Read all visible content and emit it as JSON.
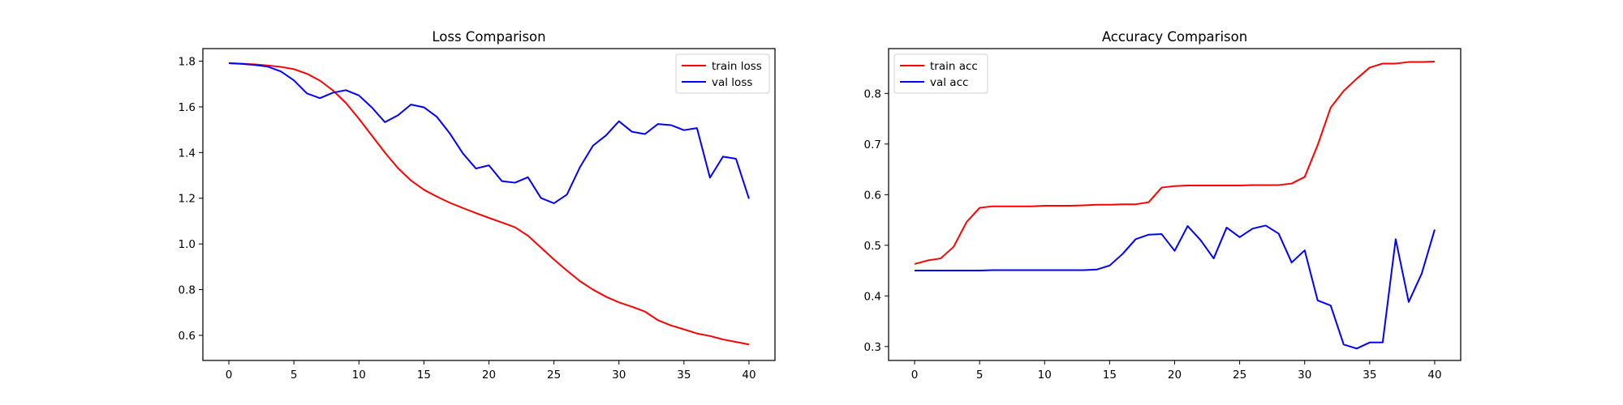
{
  "chart_data": [
    {
      "type": "line",
      "title": "Loss Comparison",
      "xlabel": "",
      "ylabel": "",
      "xlim": [
        -2,
        42
      ],
      "ylim": [
        0.49,
        1.855
      ],
      "xticks": [
        0,
        5,
        10,
        15,
        20,
        25,
        30,
        35,
        40
      ],
      "xtick_labels": [
        "0",
        "5",
        "10",
        "15",
        "20",
        "25",
        "30",
        "35",
        "40"
      ],
      "yticks": [
        0.6,
        0.8,
        1.0,
        1.2,
        1.4,
        1.6,
        1.8
      ],
      "ytick_labels": [
        "0.6",
        "0.8",
        "1.0",
        "1.2",
        "1.4",
        "1.6",
        "1.8"
      ],
      "grid": false,
      "legend_position": "top-right",
      "x": [
        0,
        1,
        2,
        3,
        4,
        5,
        6,
        7,
        8,
        9,
        10,
        11,
        12,
        13,
        14,
        15,
        16,
        17,
        18,
        19,
        20,
        21,
        22,
        23,
        24,
        25,
        26,
        27,
        28,
        29,
        30,
        31,
        32,
        33,
        34,
        35,
        36,
        37,
        38,
        39,
        40
      ],
      "series": [
        {
          "name": "train loss",
          "color": "#ff0000",
          "values": [
            1.791,
            1.789,
            1.786,
            1.781,
            1.775,
            1.765,
            1.745,
            1.715,
            1.672,
            1.617,
            1.548,
            1.474,
            1.4,
            1.332,
            1.278,
            1.237,
            1.207,
            1.18,
            1.157,
            1.135,
            1.114,
            1.094,
            1.073,
            1.036,
            0.984,
            0.932,
            0.883,
            0.837,
            0.8,
            0.769,
            0.744,
            0.725,
            0.704,
            0.666,
            0.643,
            0.626,
            0.608,
            0.597,
            0.582,
            0.571,
            0.56
          ]
        },
        {
          "name": "val loss",
          "color": "#0000ff",
          "values": [
            1.791,
            1.788,
            1.783,
            1.776,
            1.755,
            1.716,
            1.659,
            1.638,
            1.662,
            1.673,
            1.65,
            1.597,
            1.533,
            1.563,
            1.61,
            1.598,
            1.556,
            1.483,
            1.396,
            1.33,
            1.344,
            1.275,
            1.268,
            1.292,
            1.201,
            1.178,
            1.216,
            1.336,
            1.43,
            1.475,
            1.537,
            1.491,
            1.481,
            1.525,
            1.52,
            1.498,
            1.507,
            1.29,
            1.382,
            1.373,
            1.198
          ]
        }
      ]
    },
    {
      "type": "line",
      "title": "Accuracy Comparison",
      "xlabel": "",
      "ylabel": "",
      "xlim": [
        -2,
        42
      ],
      "ylim": [
        0.2725,
        0.8885
      ],
      "xticks": [
        0,
        5,
        10,
        15,
        20,
        25,
        30,
        35,
        40
      ],
      "xtick_labels": [
        "0",
        "5",
        "10",
        "15",
        "20",
        "25",
        "30",
        "35",
        "40"
      ],
      "yticks": [
        0.3,
        0.4,
        0.5,
        0.6,
        0.7,
        0.8
      ],
      "ytick_labels": [
        "0.3",
        "0.4",
        "0.5",
        "0.6",
        "0.7",
        "0.8"
      ],
      "grid": false,
      "legend_position": "top-left",
      "x": [
        0,
        1,
        2,
        3,
        4,
        5,
        6,
        7,
        8,
        9,
        10,
        11,
        12,
        13,
        14,
        15,
        16,
        17,
        18,
        19,
        20,
        21,
        22,
        23,
        24,
        25,
        26,
        27,
        28,
        29,
        30,
        31,
        32,
        33,
        34,
        35,
        36,
        37,
        38,
        39,
        40
      ],
      "series": [
        {
          "name": "train acc",
          "color": "#ff0000",
          "values": [
            0.463,
            0.47,
            0.474,
            0.497,
            0.546,
            0.574,
            0.577,
            0.577,
            0.577,
            0.577,
            0.578,
            0.578,
            0.578,
            0.579,
            0.58,
            0.58,
            0.581,
            0.581,
            0.585,
            0.614,
            0.617,
            0.618,
            0.618,
            0.618,
            0.618,
            0.618,
            0.619,
            0.619,
            0.619,
            0.622,
            0.635,
            0.698,
            0.772,
            0.805,
            0.829,
            0.851,
            0.859,
            0.859,
            0.862,
            0.862,
            0.863
          ]
        },
        {
          "name": "val acc",
          "color": "#0000ff",
          "values": [
            0.45,
            0.45,
            0.45,
            0.45,
            0.45,
            0.45,
            0.451,
            0.451,
            0.451,
            0.451,
            0.451,
            0.451,
            0.451,
            0.451,
            0.452,
            0.46,
            0.483,
            0.512,
            0.521,
            0.522,
            0.489,
            0.538,
            0.51,
            0.474,
            0.535,
            0.516,
            0.533,
            0.539,
            0.523,
            0.466,
            0.49,
            0.391,
            0.381,
            0.304,
            0.296,
            0.308,
            0.308,
            0.512,
            0.388,
            0.444,
            0.531
          ]
        }
      ]
    }
  ]
}
